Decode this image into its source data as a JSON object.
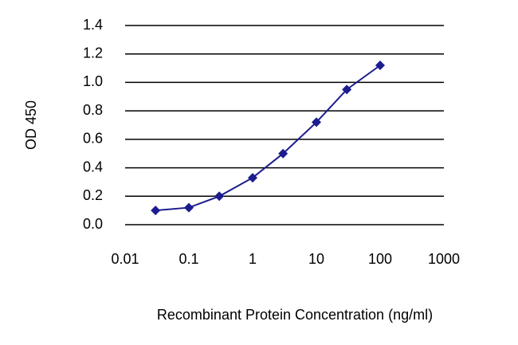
{
  "chart_data": {
    "type": "line",
    "x_label": "Recombinant Protein Concentration (ng/ml)",
    "y_label": "OD 450",
    "x": [
      0.03,
      0.1,
      0.3,
      1,
      3,
      10,
      30,
      100
    ],
    "series": [
      {
        "color": "#1c1c8e",
        "values": [
          0.1,
          0.12,
          0.2,
          0.33,
          0.5,
          0.72,
          0.95,
          1.12
        ]
      }
    ],
    "x_log": true,
    "xlim": [
      0.01,
      1000
    ],
    "xticks": [
      0.01,
      0.1,
      1,
      10,
      100,
      1000
    ],
    "ylim": [
      0,
      1.4
    ],
    "yticks": [
      {
        "value": 0,
        "label": "0.0"
      },
      0.2,
      0.4,
      0.6,
      0.8,
      {
        "value": 1,
        "label": "1.0"
      },
      1.2,
      1.4
    ],
    "grid": true
  }
}
